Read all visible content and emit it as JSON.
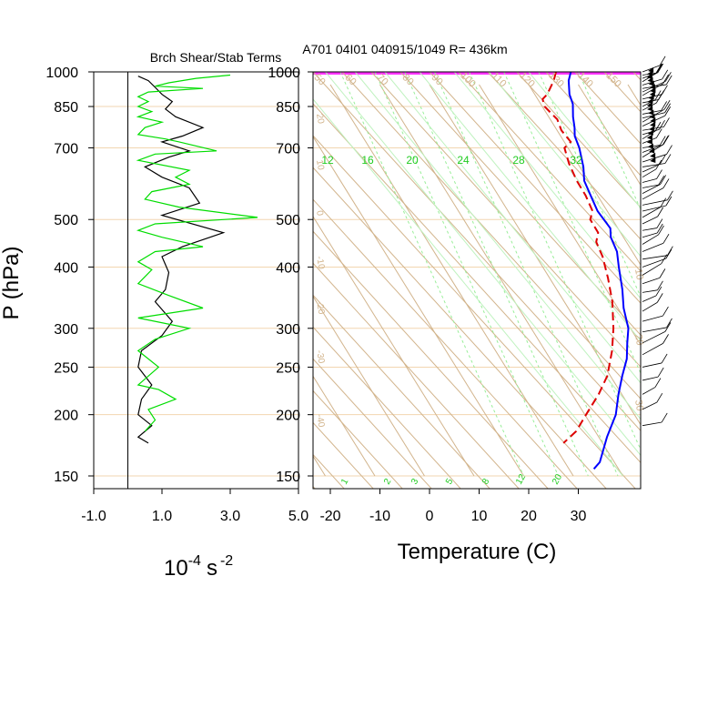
{
  "header": {
    "left_title": "Brch Shear/Stab Terms",
    "right_title": "A701 04I01 040915/1049 R= 436km"
  },
  "chart_data": [
    {
      "type": "line",
      "name": "shear-stability-panel",
      "title": "Brch Shear/Stab Terms",
      "ylabel": "P (hPa)",
      "xlabel_main": "10",
      "xlabel_exp": "-4",
      "xlabel_unit": "s",
      "xlabel_unit_exp": "-2",
      "x_ticks": [
        "-1.0",
        "1.0",
        "3.0",
        "5.0"
      ],
      "x_tick_values": [
        -1,
        1,
        3,
        5
      ],
      "xlim": [
        -1,
        5
      ],
      "y_scale": "log",
      "ylim": [
        1000,
        150
      ],
      "y_ticks": [
        "150",
        "200",
        "250",
        "300",
        "400",
        "500",
        "700",
        "850",
        "1000"
      ],
      "y_tick_values": [
        150,
        200,
        250,
        300,
        400,
        500,
        700,
        850,
        1000
      ],
      "series": [
        {
          "color": "#000000",
          "points": [
            [
              0.3,
              980
            ],
            [
              0.6,
              960
            ],
            [
              0.8,
              930
            ],
            [
              1.0,
              900
            ],
            [
              1.3,
              870
            ],
            [
              1.1,
              840
            ],
            [
              1.4,
              810
            ],
            [
              2.2,
              770
            ],
            [
              1.6,
              740
            ],
            [
              1.0,
              720
            ],
            [
              1.8,
              690
            ],
            [
              1.2,
              670
            ],
            [
              0.5,
              640
            ],
            [
              1.0,
              610
            ],
            [
              1.8,
              580
            ],
            [
              2.1,
              540
            ],
            [
              1.0,
              510
            ],
            [
              2.8,
              470
            ],
            [
              1.6,
              440
            ],
            [
              1.0,
              420
            ],
            [
              1.2,
              390
            ],
            [
              1.1,
              360
            ],
            [
              0.8,
              340
            ],
            [
              1.3,
              310
            ],
            [
              1.0,
              290
            ],
            [
              0.4,
              270
            ],
            [
              0.3,
              250
            ],
            [
              0.7,
              230
            ],
            [
              0.4,
              215
            ],
            [
              0.3,
              200
            ],
            [
              0.7,
              190
            ],
            [
              0.3,
              180
            ],
            [
              0.6,
              175
            ]
          ]
        },
        {
          "color": "#00dd00",
          "points": [
            [
              3.0,
              985
            ],
            [
              2.0,
              970
            ],
            [
              1.2,
              950
            ],
            [
              0.8,
              935
            ],
            [
              2.2,
              925
            ],
            [
              0.6,
              910
            ],
            [
              0.3,
              890
            ],
            [
              0.6,
              870
            ],
            [
              0.3,
              850
            ],
            [
              0.7,
              830
            ],
            [
              0.3,
              810
            ],
            [
              1.0,
              790
            ],
            [
              0.5,
              770
            ],
            [
              0.3,
              745
            ],
            [
              1.1,
              730
            ],
            [
              1.5,
              720
            ],
            [
              2.6,
              690
            ],
            [
              0.8,
              680
            ],
            [
              0.3,
              660
            ],
            [
              1.8,
              630
            ],
            [
              1.4,
              610
            ],
            [
              1.8,
              590
            ],
            [
              0.7,
              570
            ],
            [
              0.5,
              550
            ],
            [
              1.5,
              530
            ],
            [
              3.8,
              505
            ],
            [
              0.8,
              490
            ],
            [
              0.3,
              475
            ],
            [
              1.0,
              460
            ],
            [
              2.2,
              440
            ],
            [
              0.8,
              430
            ],
            [
              0.3,
              410
            ],
            [
              0.7,
              395
            ],
            [
              0.3,
              370
            ],
            [
              1.2,
              350
            ],
            [
              2.2,
              330
            ],
            [
              0.3,
              315
            ],
            [
              1.8,
              300
            ],
            [
              0.8,
              285
            ],
            [
              0.3,
              270
            ],
            [
              0.9,
              250
            ],
            [
              0.3,
              230
            ],
            [
              0.9,
              225
            ],
            [
              1.4,
              215
            ],
            [
              0.6,
              205
            ],
            [
              0.8,
              195
            ],
            [
              0.5,
              185
            ]
          ]
        }
      ]
    },
    {
      "type": "line",
      "name": "skew-t-log-p",
      "xlabel": "Temperature (C)",
      "x_ticks": [
        "-20",
        "-10",
        "0",
        "10",
        "20",
        "30"
      ],
      "x_tick_values": [
        -20,
        -10,
        0,
        10,
        20,
        30
      ],
      "xlim_at_1000hPa": [
        -23,
        43
      ],
      "y_scale": "log",
      "ylim": [
        1000,
        150
      ],
      "y_ticks": [
        "150",
        "200",
        "250",
        "300",
        "400",
        "500",
        "700",
        "850",
        "1000"
      ],
      "y_tick_values": [
        150,
        200,
        250,
        300,
        400,
        500,
        700,
        850,
        1000
      ],
      "highlight_band_hPa": [
        1000,
        960
      ],
      "highlight_color": "#ff33ff",
      "isotherm_labels": [
        "-40",
        "-30",
        "-20",
        "-10",
        "0",
        "10",
        "20"
      ],
      "upper_isotherm_labels": [
        "50",
        "60",
        "70",
        "80",
        "90",
        "100",
        "110",
        "120",
        "130",
        "140",
        "150"
      ],
      "mixing_ratio_labels": [
        "12",
        "16",
        "20",
        "24",
        "28",
        "32"
      ],
      "mixing_ratio_label_values": [
        12,
        16,
        20,
        24,
        28,
        32
      ],
      "bottom_labels": [
        "1",
        "2",
        "3",
        "5",
        "8",
        "12",
        "20"
      ],
      "right_labels": [
        "10",
        "20",
        "30"
      ],
      "series": [
        {
          "name": "temperature",
          "color": "#0000ff",
          "style": "solid",
          "points": [
            [
              28.5,
              1000
            ],
            [
              27.0,
              960
            ],
            [
              25.5,
              900
            ],
            [
              25.0,
              860
            ],
            [
              23.5,
              810
            ],
            [
              22.5,
              770
            ],
            [
              21.5,
              740
            ],
            [
              21.0,
              700
            ],
            [
              19.5,
              640
            ],
            [
              18.0,
              600
            ],
            [
              17.5,
              560
            ],
            [
              17.0,
              520
            ],
            [
              17.5,
              480
            ],
            [
              16.5,
              460
            ],
            [
              16.0,
              430
            ],
            [
              14.5,
              400
            ],
            [
              12.5,
              360
            ],
            [
              10.5,
              330
            ],
            [
              9.0,
              300
            ],
            [
              7.0,
              280
            ],
            [
              5.0,
              260
            ],
            [
              2.0,
              240
            ],
            [
              -1.0,
              220
            ],
            [
              -4.0,
              200
            ],
            [
              -8.5,
              180
            ],
            [
              -13.0,
              160
            ],
            [
              -15.0,
              155
            ]
          ]
        },
        {
          "name": "dewpoint",
          "color": "#dd0000",
          "style": "dashed",
          "points": [
            [
              25.5,
              1000
            ],
            [
              24.0,
              960
            ],
            [
              21.0,
              900
            ],
            [
              19.5,
              880
            ],
            [
              19.0,
              850
            ],
            [
              20.0,
              800
            ],
            [
              19.5,
              760
            ],
            [
              20.0,
              720
            ],
            [
              18.0,
              700
            ],
            [
              17.0,
              650
            ],
            [
              16.5,
              600
            ],
            [
              16.5,
              560
            ],
            [
              16.0,
              520
            ],
            [
              14.5,
              500
            ],
            [
              14.5,
              470
            ],
            [
              13.0,
              450
            ],
            [
              12.5,
              420
            ],
            [
              11.0,
              380
            ],
            [
              9.0,
              340
            ],
            [
              6.0,
              300
            ],
            [
              3.0,
              270
            ],
            [
              -1.0,
              240
            ],
            [
              -5.0,
              220
            ],
            [
              -10.0,
              200
            ],
            [
              -14.0,
              185
            ],
            [
              -18.0,
              175
            ]
          ]
        }
      ]
    }
  ]
}
